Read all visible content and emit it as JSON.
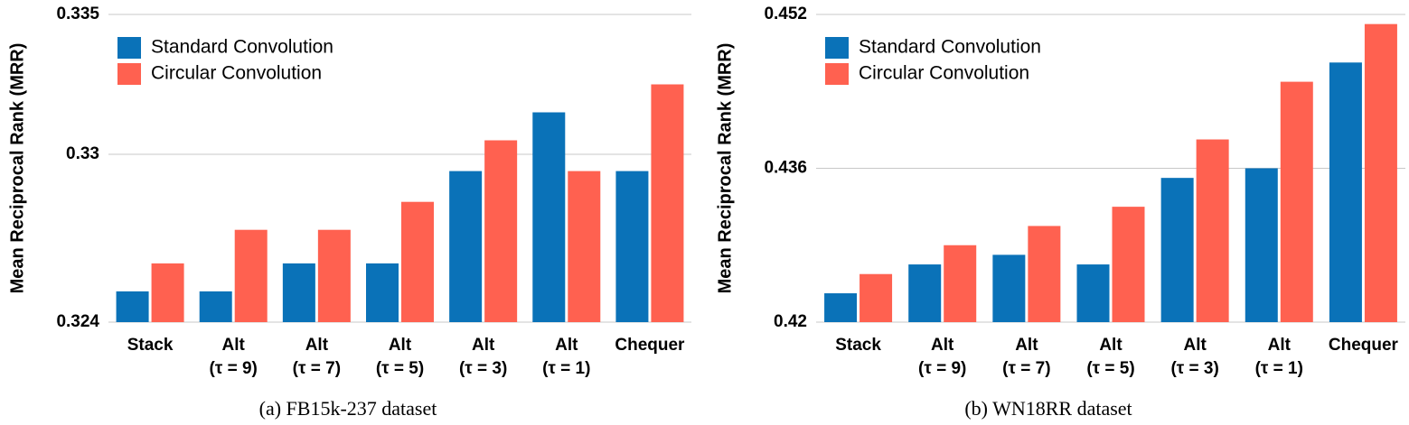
{
  "chart_data": [
    {
      "type": "bar",
      "caption": "(a) FB15k-237 dataset",
      "y_label": "Mean Reciprocal Rank (MRR)",
      "categories": [
        [
          "Stack"
        ],
        [
          "Alt",
          "(τ = 9)"
        ],
        [
          "Alt",
          "(τ = 7)"
        ],
        [
          "Alt",
          "(τ = 5)"
        ],
        [
          "Alt",
          "(τ = 3)"
        ],
        [
          "Alt",
          "(τ = 1)"
        ],
        [
          "Chequer"
        ]
      ],
      "series": [
        {
          "name": "Standard Convolution",
          "color": "#0a72b8",
          "values": [
            0.3251,
            0.3251,
            0.3261,
            0.3261,
            0.3294,
            0.3315,
            0.3294
          ]
        },
        {
          "name": "Circular Convolution",
          "color": "#ff6150",
          "values": [
            0.3261,
            0.3273,
            0.3273,
            0.3283,
            0.3305,
            0.3294,
            0.3325
          ]
        }
      ],
      "ylim": [
        0.324,
        0.335
      ],
      "yticks": [
        0.324,
        0.33,
        0.335
      ],
      "grid": true
    },
    {
      "type": "bar",
      "caption": "(b) WN18RR dataset",
      "y_label": "Mean Reciprocal Rank (MRR)",
      "categories": [
        [
          "Stack"
        ],
        [
          "Alt",
          "(τ = 9)"
        ],
        [
          "Alt",
          "(τ = 7)"
        ],
        [
          "Alt",
          "(τ = 5)"
        ],
        [
          "Alt",
          "(τ = 3)"
        ],
        [
          "Alt",
          "(τ = 1)"
        ],
        [
          "Chequer"
        ]
      ],
      "series": [
        {
          "name": "Standard Convolution",
          "color": "#0a72b8",
          "values": [
            0.423,
            0.426,
            0.427,
            0.426,
            0.435,
            0.436,
            0.447
          ]
        },
        {
          "name": "Circular Convolution",
          "color": "#ff6150",
          "values": [
            0.425,
            0.428,
            0.43,
            0.432,
            0.439,
            0.445,
            0.451
          ]
        }
      ],
      "ylim": [
        0.42,
        0.452
      ],
      "yticks": [
        0.42,
        0.436,
        0.452
      ],
      "grid": true
    }
  ]
}
